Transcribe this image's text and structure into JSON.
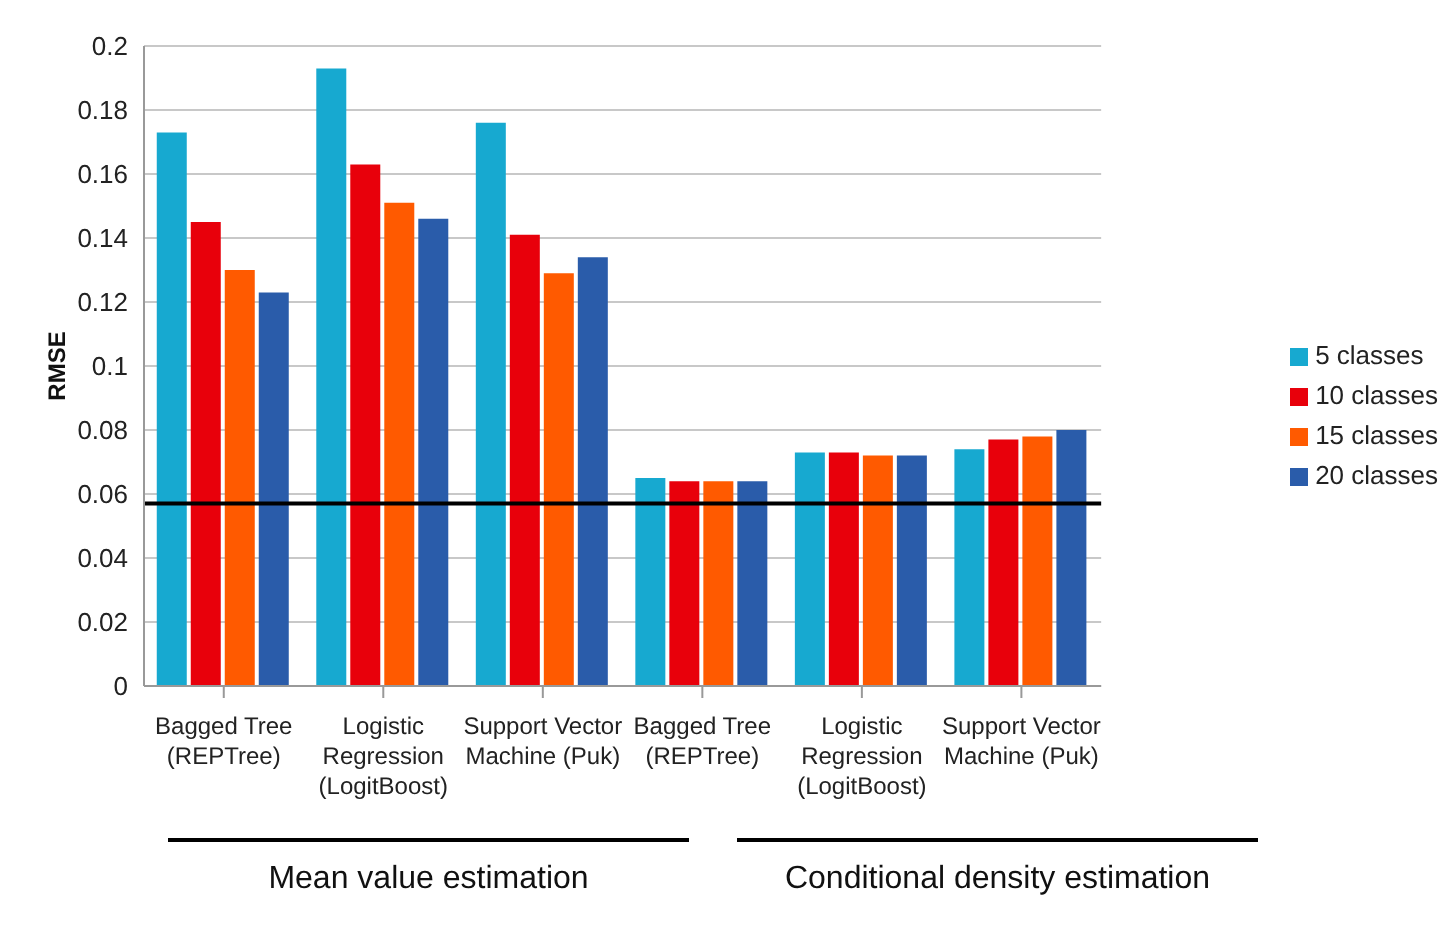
{
  "chart_data": {
    "type": "bar",
    "ylabel": "RMSE",
    "categories": [
      "Bagged Tree (REPTree)",
      "Logistic Regression (LogitBoost)",
      "Support Vector Machine (Puk)",
      "Bagged Tree (REPTree)",
      "Logistic Regression (LogitBoost)",
      "Support Vector Machine (Puk)"
    ],
    "series": [
      {
        "name": "5 classes",
        "color": "#17a9d0",
        "values": [
          0.173,
          0.193,
          0.176,
          0.065,
          0.073,
          0.074
        ]
      },
      {
        "name": "10 classes",
        "color": "#e8000b",
        "values": [
          0.145,
          0.163,
          0.141,
          0.064,
          0.073,
          0.077
        ]
      },
      {
        "name": "15 classes",
        "color": "#ff5a00",
        "values": [
          0.13,
          0.151,
          0.129,
          0.064,
          0.072,
          0.078
        ]
      },
      {
        "name": "20 classes",
        "color": "#2a5caa",
        "values": [
          0.123,
          0.146,
          0.134,
          0.064,
          0.072,
          0.08
        ]
      }
    ],
    "ylim": [
      0,
      0.2
    ],
    "yticks": [
      0,
      0.02,
      0.04,
      0.06,
      0.08,
      0.1,
      0.12,
      0.14,
      0.16,
      0.18,
      0.2
    ],
    "grid": "y",
    "legend": "right",
    "ref_lines": [
      {
        "axis": "y",
        "value": 0.057,
        "color": "#000000"
      }
    ],
    "annotations": [
      "Mean value estimation",
      "Conditional density estimation"
    ]
  }
}
